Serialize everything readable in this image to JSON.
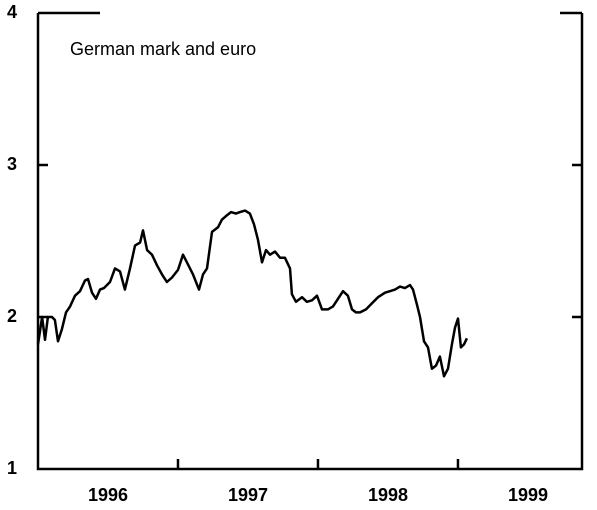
{
  "chart_data": {
    "type": "line",
    "title": "German mark and euro",
    "xlim": [
      1996,
      1999.886
    ],
    "ylim": [
      1,
      4
    ],
    "yticks": [
      1,
      2,
      3,
      4
    ],
    "xticks": [
      1997,
      1998,
      1999
    ],
    "xtick_labels": [
      {
        "value": 1996.5,
        "label": "1996"
      },
      {
        "value": 1997.5,
        "label": "1997"
      },
      {
        "value": 1998.5,
        "label": "1998"
      },
      {
        "value": 1999.5,
        "label": "1999"
      }
    ],
    "x": [
      1996.0,
      1996.029,
      1996.05,
      1996.071,
      1996.1,
      1996.121,
      1996.143,
      1996.171,
      1996.2,
      1996.229,
      1996.264,
      1996.3,
      1996.336,
      1996.357,
      1996.386,
      1996.414,
      1996.443,
      1996.471,
      1996.514,
      1996.55,
      1996.586,
      1996.621,
      1996.657,
      1996.693,
      1996.729,
      1996.75,
      1996.779,
      1996.814,
      1996.85,
      1996.886,
      1996.921,
      1996.957,
      1997.0,
      1997.036,
      1997.064,
      1997.107,
      1997.15,
      1997.179,
      1997.207,
      1997.243,
      1997.286,
      1997.314,
      1997.35,
      1997.379,
      1997.414,
      1997.443,
      1997.479,
      1997.514,
      1997.543,
      1997.571,
      1997.6,
      1997.629,
      1997.657,
      1997.693,
      1997.729,
      1997.764,
      1997.8,
      1997.814,
      1997.843,
      1997.886,
      1997.921,
      1997.957,
      1997.993,
      1998.029,
      1998.071,
      1998.107,
      1998.143,
      1998.179,
      1998.214,
      1998.243,
      1998.271,
      1998.3,
      1998.343,
      1998.386,
      1998.429,
      1998.479,
      1998.514,
      1998.55,
      1998.586,
      1998.621,
      1998.657,
      1998.679,
      1998.707,
      1998.729,
      1998.757,
      1998.786,
      1998.814,
      1998.843,
      1998.871,
      1998.9,
      1998.929,
      1998.957,
      1998.979,
      1999.0,
      1999.021,
      1999.043,
      1999.064
    ],
    "series": [
      {
        "color": "#000000",
        "values": [
          1.82,
          2.0,
          1.85,
          2.0,
          2.0,
          1.98,
          1.84,
          1.92,
          2.03,
          2.07,
          2.14,
          2.17,
          2.24,
          2.25,
          2.16,
          2.12,
          2.18,
          2.19,
          2.23,
          2.32,
          2.3,
          2.18,
          2.32,
          2.47,
          2.49,
          2.57,
          2.44,
          2.41,
          2.34,
          2.28,
          2.23,
          2.26,
          2.31,
          2.41,
          2.36,
          2.28,
          2.18,
          2.28,
          2.32,
          2.56,
          2.59,
          2.64,
          2.67,
          2.69,
          2.68,
          2.69,
          2.7,
          2.68,
          2.61,
          2.51,
          2.36,
          2.44,
          2.41,
          2.43,
          2.39,
          2.39,
          2.32,
          2.15,
          2.1,
          2.13,
          2.1,
          2.11,
          2.14,
          2.05,
          2.05,
          2.07,
          2.12,
          2.17,
          2.14,
          2.05,
          2.03,
          2.03,
          2.05,
          2.09,
          2.13,
          2.16,
          2.17,
          2.18,
          2.2,
          2.19,
          2.21,
          2.18,
          2.08,
          2.0,
          1.84,
          1.8,
          1.66,
          1.68,
          1.74,
          1.61,
          1.66,
          1.82,
          1.93,
          1.99,
          1.8,
          1.82,
          1.86
        ]
      }
    ]
  }
}
